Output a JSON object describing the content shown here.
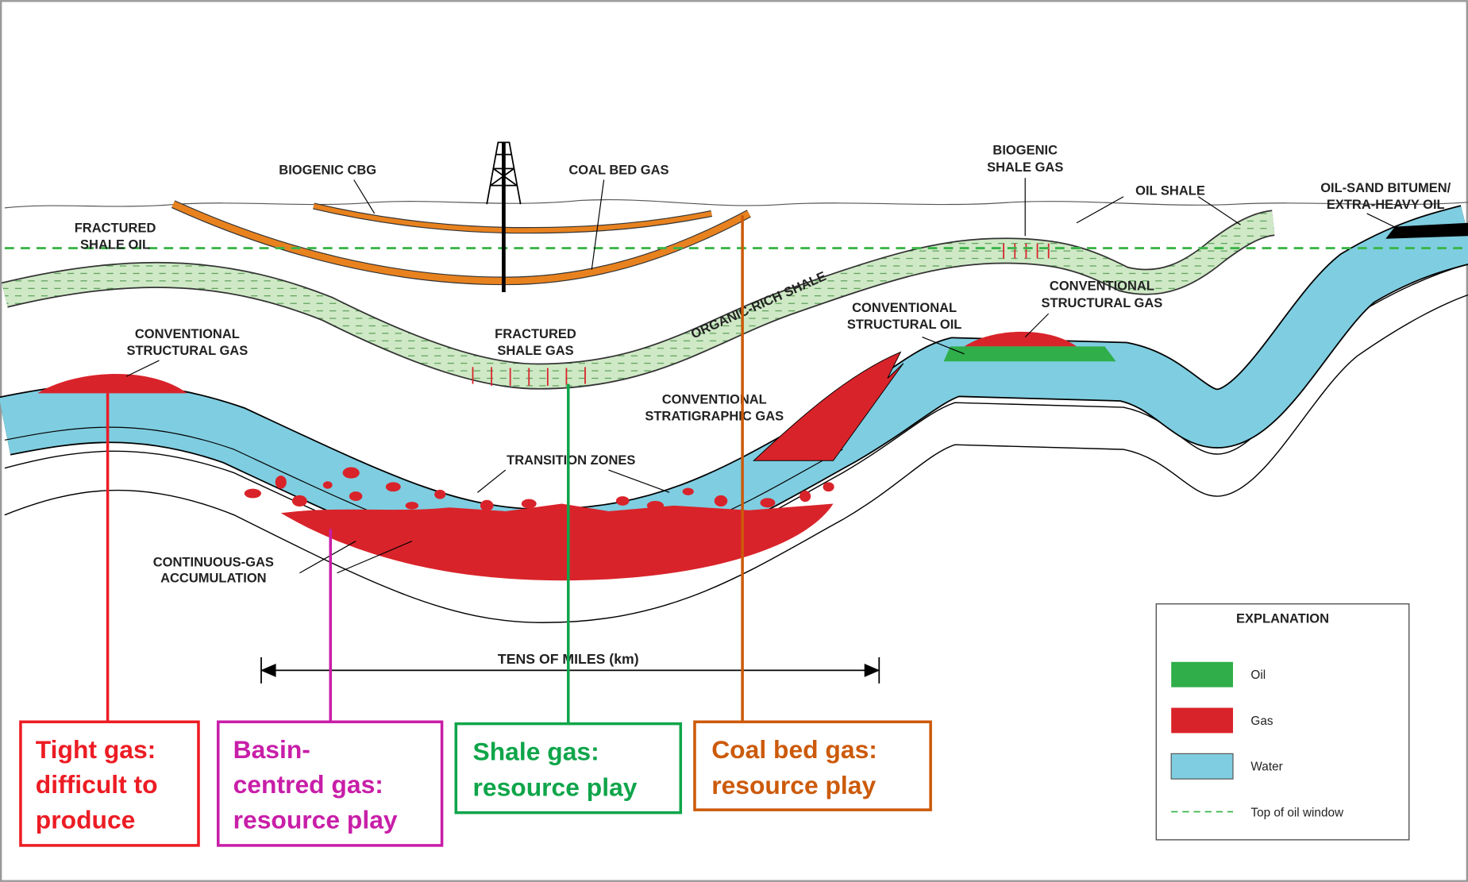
{
  "labels": [
    {
      "lines": [
        "BIOGENIC CBG"
      ]
    },
    {
      "lines": [
        "COAL BED GAS"
      ]
    },
    {
      "lines": [
        "BIOGENIC",
        "SHALE GAS"
      ]
    },
    {
      "lines": [
        "OIL SHALE"
      ]
    },
    {
      "lines": [
        "OIL-SAND BITUMEN/",
        "EXTRA-HEAVY OIL"
      ]
    },
    {
      "lines": [
        "FRACTURED",
        "SHALE OIL"
      ]
    },
    {
      "lines": [
        "ORGANIC-RICH SHALE"
      ]
    },
    {
      "lines": [
        "CONVENTIONAL",
        "STRUCTURAL GAS"
      ]
    },
    {
      "lines": [
        "CONVENTIONAL",
        "STRUCTURAL OIL"
      ]
    },
    {
      "lines": [
        "CONVENTIONAL",
        "STRUCTURAL GAS"
      ]
    },
    {
      "lines": [
        "FRACTURED",
        "SHALE GAS"
      ]
    },
    {
      "lines": [
        "CONVENTIONAL",
        "STRATIGRAPHIC GAS"
      ]
    },
    {
      "lines": [
        "TRANSITION ZONES"
      ]
    },
    {
      "lines": [
        "CONTINUOUS-GAS",
        "ACCUMULATION"
      ]
    }
  ],
  "scale_label": "TENS OF MILES (km)",
  "callouts": [
    {
      "lines": [
        "Tight gas:",
        "difficult to",
        "produce"
      ],
      "color": "#ec1c24"
    },
    {
      "lines": [
        "Basin-",
        "centred  gas:",
        "resource play"
      ],
      "color": "#c81ea8"
    },
    {
      "lines": [
        "Shale  gas:",
        "resource play"
      ],
      "color": "#0fa54a"
    },
    {
      "lines": [
        "Coal bed  gas:",
        "resource play"
      ],
      "color": "#cc5a0a"
    }
  ],
  "legend": {
    "title": "EXPLANATION",
    "items": [
      {
        "label": "Oil",
        "color": "#2fae4a"
      },
      {
        "label": "Gas",
        "color": "#d9232a"
      },
      {
        "label": "Water",
        "color": "#7fcde0"
      },
      {
        "label": "Top of oil window",
        "color": "#3bb54a"
      }
    ]
  }
}
